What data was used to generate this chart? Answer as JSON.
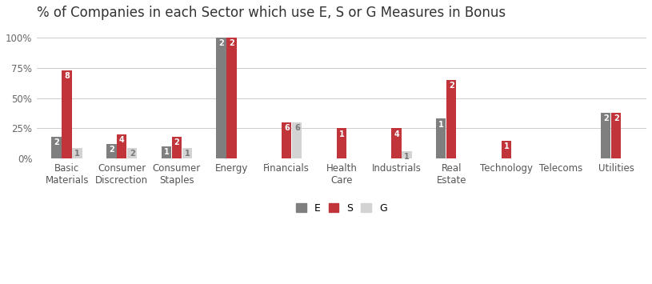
{
  "title": "% of Companies in each Sector which use E, S or G Measures in Bonus",
  "categories": [
    "Basic\nMaterials",
    "Consumer\nDiscrection",
    "Consumer\nStaples",
    "Energy",
    "Financials",
    "Health\nCare",
    "Industrials",
    "Real\nEstate",
    "Technology",
    "Telecoms",
    "Utilities"
  ],
  "E_values": [
    18,
    12,
    10,
    100,
    0,
    0,
    0,
    33,
    0,
    0,
    38
  ],
  "S_values": [
    73,
    20,
    18,
    100,
    30,
    25,
    25,
    65,
    15,
    0,
    38
  ],
  "G_values": [
    9,
    9,
    9,
    0,
    30,
    0,
    6,
    0,
    0,
    0,
    0
  ],
  "E_labels": [
    "2",
    "2",
    "1",
    "2",
    "",
    "",
    "",
    "1",
    "",
    "",
    "2"
  ],
  "S_labels": [
    "8",
    "4",
    "2",
    "2",
    "6",
    "1",
    "4",
    "2",
    "1",
    "",
    "2"
  ],
  "G_labels": [
    "1",
    "2",
    "1",
    "",
    "6",
    "",
    "1",
    "",
    "",
    "",
    ""
  ],
  "color_E": "#7f7f7f",
  "color_S": "#c0343a",
  "color_G": "#d3d3d3",
  "color_bg": "#ffffff",
  "color_grid": "#cccccc",
  "yticks": [
    0,
    25,
    50,
    75,
    100
  ],
  "ytick_labels": [
    "0%",
    "25%",
    "50%",
    "75%",
    "100%"
  ],
  "legend_labels": [
    "E",
    "S",
    "G"
  ],
  "bar_width": 0.18,
  "label_fontsize": 7.0,
  "title_fontsize": 12.0,
  "tick_fontsize": 8.5
}
